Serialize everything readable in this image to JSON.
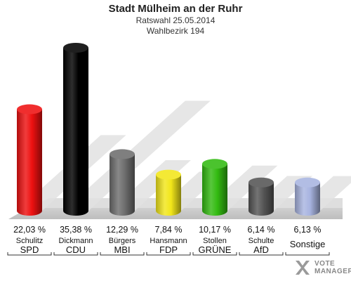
{
  "header": {
    "title": "Stadt Mülheim an der Ruhr",
    "subtitle1": "Ratswahl 25.05.2014",
    "subtitle2": "Wahlbezirk 194"
  },
  "brand": {
    "line1": "VOTE",
    "line2": "MANAGER",
    "icon": "vote-manager-x-icon"
  },
  "chart_data": {
    "type": "bar",
    "title": "Stadt Mülheim an der Ruhr",
    "subtitle": "Ratswahl 25.05.2014 / Wahlbezirk 194",
    "ylim": [
      0,
      38
    ],
    "grid": false,
    "categories": [
      "SPD",
      "CDU",
      "MBI",
      "FDP",
      "GRÜNE",
      "AfD",
      "Sonstige"
    ],
    "candidates": [
      "Schulitz",
      "Dickmann",
      "Bürgers",
      "Hansmann",
      "Stollen",
      "Schulte",
      ""
    ],
    "values": [
      22.03,
      35.38,
      12.29,
      7.84,
      10.17,
      6.14,
      6.13
    ],
    "value_labels": [
      "22,03 %",
      "35,38 %",
      "12,29 %",
      "7,84 %",
      "10,17 %",
      "6,14 %",
      "6,13 %"
    ],
    "colors": [
      "#ee1111",
      "#000000",
      "#6e6e6e",
      "#f2e61a",
      "#33bb11",
      "#555555",
      "#a8b4e0"
    ]
  }
}
